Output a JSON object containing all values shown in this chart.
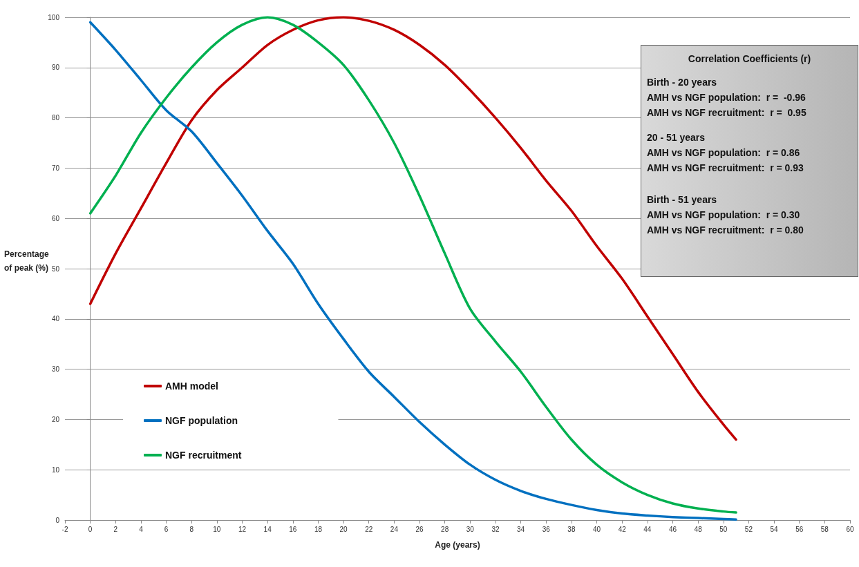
{
  "chart_data": {
    "type": "line",
    "xlabel": "Age (years)",
    "ylabel": "Percentage of peak (%)",
    "x": [
      0,
      2,
      4,
      6,
      8,
      10,
      12,
      14,
      16,
      18,
      20,
      22,
      24,
      26,
      28,
      30,
      32,
      34,
      36,
      38,
      40,
      42,
      44,
      46,
      48,
      50,
      51
    ],
    "series": [
      {
        "name": "AMH model",
        "color": "#c00000",
        "values": [
          43,
          53,
          62,
          71,
          79.5,
          85.5,
          90,
          94.5,
          97.5,
          99.4,
          100,
          99.3,
          97.5,
          94.5,
          90.5,
          85.5,
          80,
          74,
          67.5,
          61.5,
          54.5,
          48,
          40.5,
          33,
          25.5,
          19,
          16
        ]
      },
      {
        "name": "NGF population",
        "color": "#0070c0",
        "values": [
          99,
          93.5,
          87.5,
          81.5,
          77.3,
          71,
          64.5,
          57.5,
          51,
          43,
          36,
          29.5,
          24.5,
          19.5,
          15,
          11,
          8,
          5.8,
          4.2,
          3,
          2,
          1.3,
          0.9,
          0.6,
          0.4,
          0.2,
          0.1
        ]
      },
      {
        "name": "NGF recruitment",
        "color": "#00b050",
        "values": [
          61,
          68.5,
          77,
          84,
          90,
          95,
          98.5,
          100,
          98.5,
          95,
          90.5,
          83.5,
          75,
          64.5,
          53,
          42,
          35.5,
          29.5,
          22.5,
          16,
          11,
          7.5,
          5,
          3.3,
          2.3,
          1.7,
          1.5
        ]
      }
    ],
    "xlim": [
      -2,
      60
    ],
    "xticks": [
      -2,
      0,
      2,
      4,
      6,
      8,
      10,
      12,
      14,
      16,
      18,
      20,
      22,
      24,
      26,
      28,
      30,
      32,
      34,
      36,
      38,
      40,
      42,
      44,
      46,
      48,
      50,
      52,
      54,
      56,
      58,
      60
    ],
    "ylim": [
      0,
      100
    ],
    "yticks": [
      0,
      10,
      20,
      30,
      40,
      50,
      60,
      70,
      80,
      90,
      100
    ],
    "grid": "y",
    "legend": "bottom left",
    "marker": "none",
    "line_style": "solid",
    "annotations": [
      "Correlation Coefficients (r)",
      "Birth - 20 years",
      "AMH vs NGF population:  r =  -0.96",
      "AMH vs NGF recruitment:  r =  0.95",
      "20 - 51 years",
      "AMH vs NGF population:  r = 0.86",
      "AMH vs NGF recruitment:  r = 0.93",
      "Birth - 51 years",
      "AMH vs NGF population:  r = 0.30",
      "AMH vs NGF recruitment:  r = 0.80"
    ]
  }
}
